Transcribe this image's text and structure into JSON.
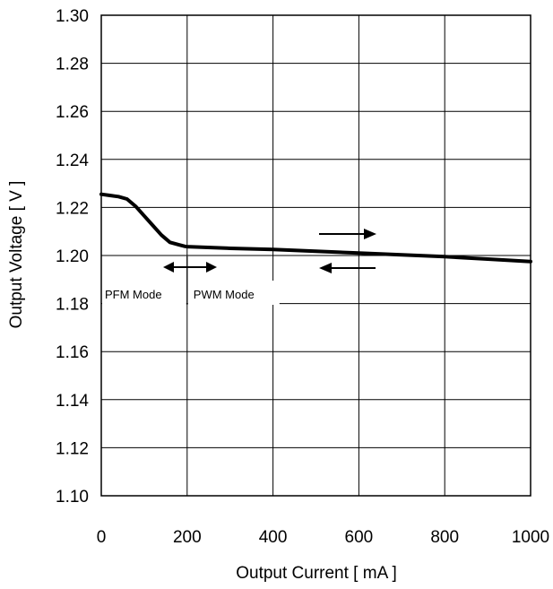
{
  "chart_data": {
    "type": "line",
    "title": "",
    "xlabel": "Output Current  [ mA ]",
    "ylabel": "Output Voltage [ V ]",
    "xlim": [
      0,
      1000
    ],
    "ylim": [
      1.1,
      1.3
    ],
    "xticks": [
      0,
      200,
      400,
      600,
      800,
      1000
    ],
    "yticks": [
      1.1,
      1.12,
      1.14,
      1.16,
      1.18,
      1.2,
      1.22,
      1.24,
      1.26,
      1.28,
      1.3
    ],
    "xtick_labels": [
      "0",
      "200",
      "400",
      "600",
      "800",
      "1000"
    ],
    "ytick_labels": [
      "1.10",
      "1.12",
      "1.14",
      "1.16",
      "1.18",
      "1.20",
      "1.22",
      "1.24",
      "1.26",
      "1.28",
      "1.30"
    ],
    "grid": true,
    "series": [
      {
        "x": [
          0,
          20,
          40,
          60,
          80,
          100,
          120,
          140,
          160,
          180,
          195,
          200,
          300,
          400,
          500,
          600,
          700,
          800,
          900,
          1000
        ],
        "y": [
          1.2255,
          1.225,
          1.2245,
          1.2235,
          1.2205,
          1.2165,
          1.2125,
          1.2085,
          1.2055,
          1.2045,
          1.2038,
          1.2037,
          1.203,
          1.2025,
          1.2018,
          1.201,
          1.2003,
          1.1995,
          1.1985,
          1.1975
        ]
      }
    ],
    "annotations": {
      "pfm_label": "PFM Mode",
      "pwm_label": "PWM Mode",
      "mode_boundary_x": 200
    }
  }
}
